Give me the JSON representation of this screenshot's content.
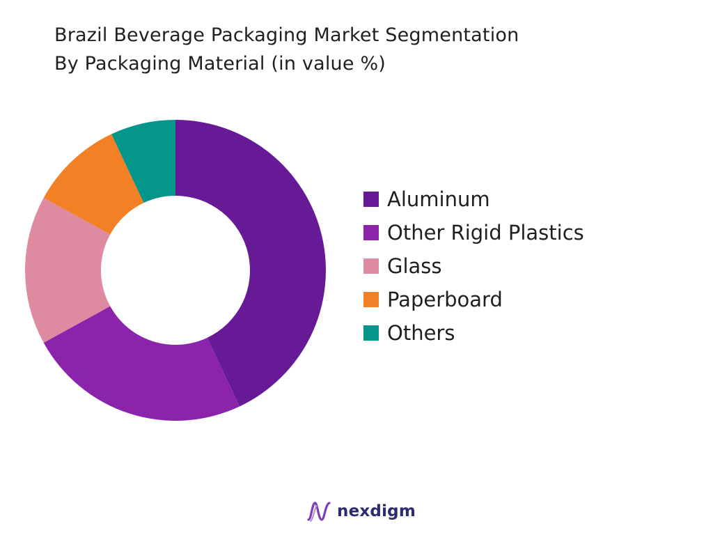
{
  "title": {
    "line1": "Brazil Beverage Packaging Market Segmentation",
    "line2": "By Packaging Material (in value %)"
  },
  "chart_data": {
    "type": "pie",
    "donut": true,
    "categories": [
      "Aluminum",
      "Other Rigid Plastics",
      "Glass",
      "Paperboard",
      "Others"
    ],
    "values": [
      43,
      24,
      16,
      10,
      7
    ],
    "colors": [
      "#661a96",
      "#8b23ab",
      "#de8aa0",
      "#f38024",
      "#04968a"
    ],
    "start_angle": "12 o'clock",
    "direction": "clockwise",
    "legend_position": "right"
  },
  "brand": {
    "name": "nexdigm",
    "logo_color": "#7b3fb5",
    "text_color": "#2b2b6e"
  }
}
